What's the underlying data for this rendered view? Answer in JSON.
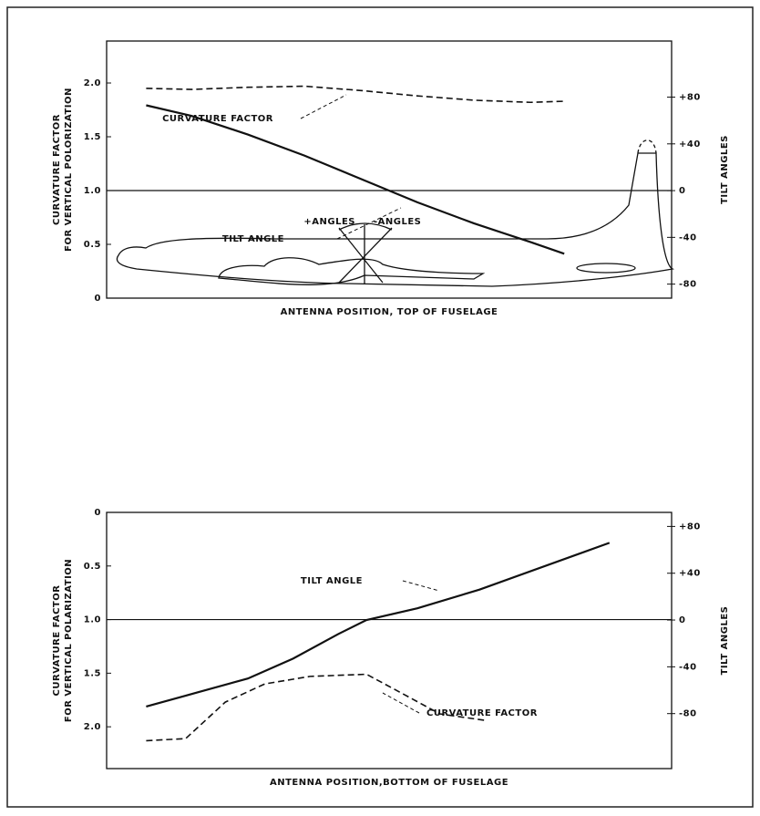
{
  "chart_data": [
    {
      "type": "line",
      "ylabel": [
        "CURVATURE FACTOR",
        "FOR VERTICAL POLORIZATION"
      ],
      "y2label": "TILT ANGLES",
      "xlabel": "ANTENNA POSITION, TOP OF FUSELAGE",
      "xlim": [
        0,
        10
      ],
      "ylim": [
        0,
        2.39
      ],
      "yticks": [
        0,
        {
          "value": 0.5,
          "label": "0.5"
        },
        {
          "value": 1,
          "label": "1.0"
        },
        1.5,
        {
          "value": 2,
          "label": "2.0"
        }
      ],
      "y2lim": [
        -92,
        128
      ],
      "y2ticks": [
        {
          "value": -80,
          "label": "-80"
        },
        {
          "value": -40,
          "label": "-40"
        },
        0,
        {
          "value": 40,
          "label": "+40"
        },
        {
          "value": 80,
          "label": "+80"
        }
      ],
      "reference_line": 1,
      "series": [
        {
          "name": "CURVATURE FACTOR",
          "color": "#111",
          "dashed": true,
          "axis": "y",
          "x": [
            0.7,
            1.5,
            2.5,
            3.5,
            4.5,
            5.5,
            6.5,
            7.5,
            8.1
          ],
          "values": [
            1.95,
            1.94,
            1.96,
            1.97,
            1.93,
            1.88,
            1.84,
            1.82,
            1.83
          ]
        },
        {
          "name": "TILT ANGLE",
          "color": "#111",
          "dashed": false,
          "axis": "y2",
          "x": [
            0.7,
            1.5,
            2.5,
            3.5,
            4.5,
            5.5,
            6.5,
            7.5,
            8.1
          ],
          "values": [
            73,
            64,
            48,
            30,
            10,
            -10,
            -28,
            -44,
            -54
          ]
        }
      ]
    },
    {
      "type": "line",
      "ylabel": [
        "CURVATURE FACTOR",
        "FOR VERTICAL POLARIZATION"
      ],
      "y2label": "TILT ANGLES",
      "xlabel": "ANTENNA POSITION,BOTTOM OF FUSELAGE",
      "xlim": [
        0,
        10
      ],
      "ylim": [
        2.39,
        0
      ],
      "yticks": [
        0,
        {
          "value": 0.5,
          "label": "0.5"
        },
        {
          "value": 1,
          "label": "1.0"
        },
        1.5,
        {
          "value": 2,
          "label": "2.0"
        }
      ],
      "y2lim": [
        -127,
        92
      ],
      "y2ticks": [
        {
          "value": -80,
          "label": "-80"
        },
        {
          "value": -40,
          "label": "-40"
        },
        0,
        {
          "value": 40,
          "label": "+40"
        },
        {
          "value": 80,
          "label": "+80"
        }
      ],
      "reference_line": 1,
      "series": [
        {
          "name": "CURVATURE FACTOR",
          "color": "#111",
          "dashed": true,
          "axis": "y",
          "x": [
            0.7,
            1.4,
            2.1,
            2.8,
            3.6,
            4.6,
            5.2,
            5.9,
            6.7
          ],
          "values": [
            2.13,
            2.11,
            1.77,
            1.6,
            1.53,
            1.51,
            1.68,
            1.88,
            1.94
          ]
        },
        {
          "name": "TILT ANGLE",
          "color": "#111",
          "dashed": false,
          "axis": "y2",
          "x": [
            0.7,
            1.6,
            2.5,
            3.3,
            4.1,
            4.6,
            5.5,
            6.6,
            8.9
          ],
          "values": [
            -74,
            -62,
            -50,
            -33,
            -12,
            0,
            10,
            26,
            66
          ]
        }
      ]
    }
  ],
  "diagram": {
    "labels": [
      "+ANGLES",
      "-ANGLES"
    ]
  }
}
